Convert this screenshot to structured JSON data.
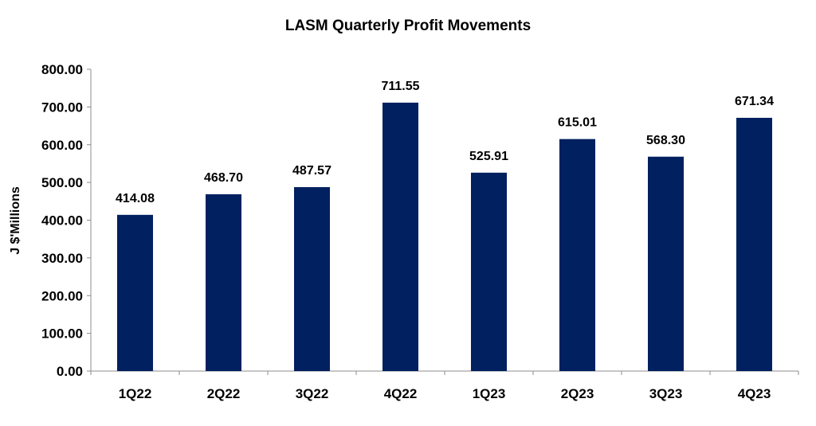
{
  "chart_data": {
    "type": "bar",
    "title": "LASM Quarterly Profit Movements",
    "xlabel": "",
    "ylabel": "J $'Millions",
    "categories": [
      "1Q22",
      "2Q22",
      "3Q22",
      "4Q22",
      "1Q23",
      "2Q23",
      "3Q23",
      "4Q23"
    ],
    "values": [
      414.08,
      468.7,
      487.57,
      711.55,
      525.91,
      615.01,
      568.3,
      671.34
    ],
    "data_labels": [
      "414.08",
      "468.70",
      "487.57",
      "711.55",
      "525.91",
      "615.01",
      "568.30",
      "671.34"
    ],
    "ylim": [
      0,
      800
    ],
    "yticks": [
      "0.00",
      "100.00",
      "200.00",
      "300.00",
      "400.00",
      "500.00",
      "600.00",
      "700.00",
      "800.00"
    ],
    "grid": false,
    "legend": "none",
    "bar_color": "#002060"
  }
}
